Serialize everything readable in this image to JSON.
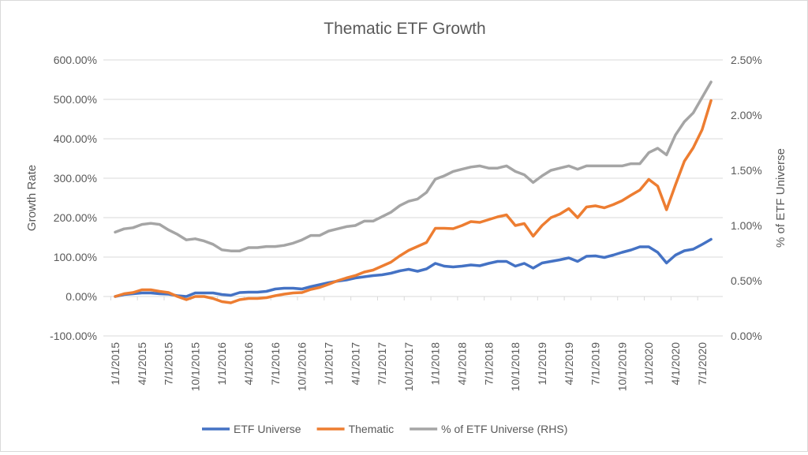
{
  "chart_data": {
    "type": "line",
    "title": "Thematic ETF Growth",
    "ylabel": "Growth Rate",
    "y2label": "% of ETF Universe",
    "ylim": [
      -100,
      600
    ],
    "y2lim": [
      0,
      2.5
    ],
    "yticks": [
      "-100.00%",
      "0.00%",
      "100.00%",
      "200.00%",
      "300.00%",
      "400.00%",
      "500.00%",
      "600.00%"
    ],
    "y2ticks": [
      "0.00%",
      "0.50%",
      "1.00%",
      "1.50%",
      "2.00%",
      "2.50%"
    ],
    "grid": true,
    "legend": "bottom",
    "x": [
      "1/1/2015",
      "2/1/2015",
      "3/1/2015",
      "4/1/2015",
      "5/1/2015",
      "6/1/2015",
      "7/1/2015",
      "8/1/2015",
      "9/1/2015",
      "10/1/2015",
      "11/1/2015",
      "12/1/2015",
      "1/1/2016",
      "2/1/2016",
      "3/1/2016",
      "4/1/2016",
      "5/1/2016",
      "6/1/2016",
      "7/1/2016",
      "8/1/2016",
      "9/1/2016",
      "10/1/2016",
      "11/1/2016",
      "12/1/2016",
      "1/1/2017",
      "2/1/2017",
      "3/1/2017",
      "4/1/2017",
      "5/1/2017",
      "6/1/2017",
      "7/1/2017",
      "8/1/2017",
      "9/1/2017",
      "10/1/2017",
      "11/1/2017",
      "12/1/2017",
      "1/1/2018",
      "2/1/2018",
      "3/1/2018",
      "4/1/2018",
      "5/1/2018",
      "6/1/2018",
      "7/1/2018",
      "8/1/2018",
      "9/1/2018",
      "10/1/2018",
      "11/1/2018",
      "12/1/2018",
      "1/1/2019",
      "2/1/2019",
      "3/1/2019",
      "4/1/2019",
      "5/1/2019",
      "6/1/2019",
      "7/1/2019",
      "8/1/2019",
      "9/1/2019",
      "10/1/2019",
      "11/1/2019",
      "12/1/2019",
      "1/1/2020",
      "2/1/2020",
      "3/1/2020",
      "4/1/2020",
      "5/1/2020",
      "6/1/2020",
      "7/1/2020",
      "8/1/2020"
    ],
    "xtick_step": 3,
    "series": [
      {
        "name": "ETF Universe",
        "axis": "left",
        "color": "#4472C4",
        "values": [
          0,
          5,
          7,
          9,
          9,
          7,
          6,
          2,
          0,
          9,
          9,
          9,
          5,
          3,
          10,
          11,
          11,
          13,
          19,
          21,
          21,
          19,
          25,
          30,
          35,
          39,
          42,
          47,
          50,
          53,
          55,
          59,
          65,
          69,
          64,
          70,
          84,
          77,
          75,
          77,
          80,
          78,
          84,
          89,
          89,
          77,
          84,
          72,
          85,
          89,
          93,
          98,
          89,
          102,
          103,
          99,
          105,
          112,
          118,
          126,
          126,
          112,
          85,
          105,
          116,
          120,
          132,
          145
        ]
      },
      {
        "name": "Thematic",
        "axis": "left",
        "color": "#ED7D31",
        "values": [
          0,
          7,
          10,
          17,
          17,
          13,
          10,
          0,
          -8,
          0,
          0,
          -5,
          -13,
          -16,
          -8,
          -5,
          -5,
          -3,
          2,
          6,
          9,
          10,
          18,
          23,
          31,
          40,
          47,
          53,
          62,
          67,
          77,
          87,
          103,
          117,
          127,
          137,
          173,
          173,
          172,
          180,
          190,
          188,
          195,
          202,
          207,
          180,
          185,
          153,
          180,
          200,
          209,
          223,
          200,
          227,
          230,
          225,
          233,
          243,
          257,
          270,
          297,
          280,
          220,
          283,
          343,
          377,
          423,
          497
        ]
      },
      {
        "name": "% of ETF Universe (RHS)",
        "axis": "right",
        "color": "#A5A5A5",
        "values": [
          0.94,
          0.97,
          0.98,
          1.01,
          1.02,
          1.01,
          0.96,
          0.92,
          0.87,
          0.88,
          0.86,
          0.83,
          0.78,
          0.77,
          0.77,
          0.8,
          0.8,
          0.81,
          0.81,
          0.82,
          0.84,
          0.87,
          0.91,
          0.91,
          0.95,
          0.97,
          0.99,
          1.0,
          1.04,
          1.04,
          1.08,
          1.12,
          1.18,
          1.22,
          1.24,
          1.3,
          1.42,
          1.45,
          1.49,
          1.51,
          1.53,
          1.54,
          1.52,
          1.52,
          1.54,
          1.49,
          1.46,
          1.39,
          1.45,
          1.5,
          1.52,
          1.54,
          1.51,
          1.54,
          1.54,
          1.54,
          1.54,
          1.54,
          1.56,
          1.56,
          1.66,
          1.7,
          1.64,
          1.82,
          1.94,
          2.02,
          2.16,
          2.3
        ]
      }
    ]
  }
}
